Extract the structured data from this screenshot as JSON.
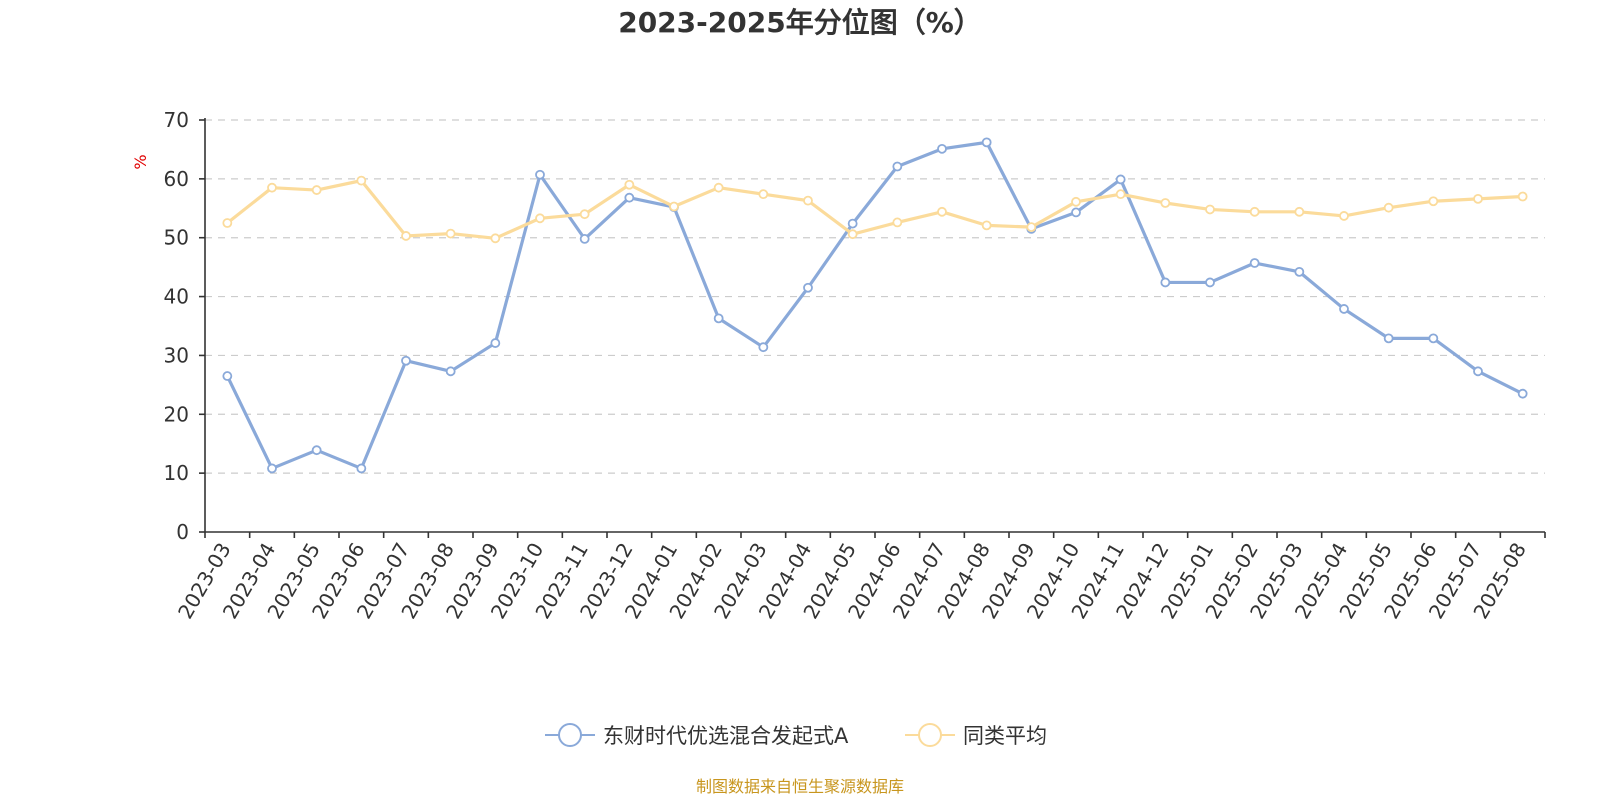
{
  "chart_data": {
    "type": "line",
    "title": "2023-2025年分位图（%）",
    "ylabel": "%",
    "ylim": [
      0,
      70
    ],
    "y_ticks": [
      "0",
      "10",
      "20",
      "30",
      "40",
      "50",
      "60",
      "70"
    ],
    "grid": true,
    "legend_position": "bottom-center",
    "categories": [
      "2023-03",
      "2023-04",
      "2023-05",
      "2023-06",
      "2023-07",
      "2023-08",
      "2023-09",
      "2023-10",
      "2023-11",
      "2023-12",
      "2024-01",
      "2024-02",
      "2024-03",
      "2024-04",
      "2024-05",
      "2024-06",
      "2024-07",
      "2024-08",
      "2024-09",
      "2024-10",
      "2024-11",
      "2024-12",
      "2025-01",
      "2025-02",
      "2025-03",
      "2025-04",
      "2025-05",
      "2025-06",
      "2025-07",
      "2025-08"
    ],
    "series": [
      {
        "name": "东财时代优选混合发起式A",
        "color": "#8aa9d9",
        "values": [
          26.5,
          10.8,
          13.9,
          10.8,
          29.1,
          27.3,
          32.1,
          60.7,
          49.8,
          56.8,
          55.2,
          36.3,
          31.4,
          41.5,
          52.4,
          62.1,
          65.1,
          66.2,
          51.5,
          54.3,
          59.9,
          42.4,
          42.4,
          45.7,
          44.2,
          37.9,
          32.9,
          32.9,
          27.3,
          23.5
        ]
      },
      {
        "name": "同类平均",
        "color": "#fbdb9b",
        "values": [
          52.5,
          58.5,
          58.1,
          59.7,
          50.3,
          50.7,
          49.9,
          53.3,
          54.0,
          59.0,
          55.3,
          58.5,
          57.4,
          56.3,
          50.6,
          52.6,
          54.4,
          52.1,
          51.8,
          56.1,
          57.4,
          55.9,
          54.8,
          54.4,
          54.4,
          53.7,
          55.1,
          56.2,
          56.6,
          57.0
        ]
      }
    ]
  },
  "footer": {
    "source": "制图数据来自恒生聚源数据库"
  }
}
